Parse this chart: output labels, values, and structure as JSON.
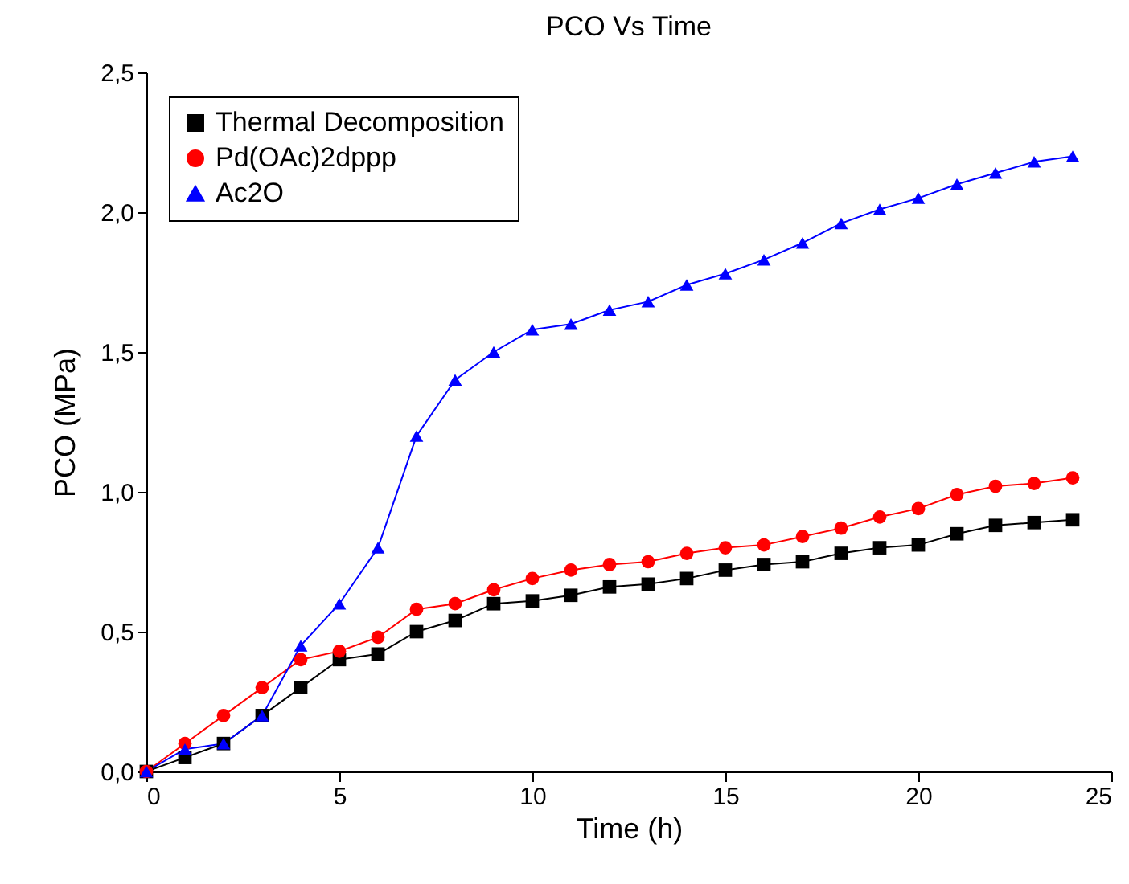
{
  "chart_data": {
    "type": "line",
    "title": "PCO Vs Time",
    "xlabel": "Time (h)",
    "ylabel": "PCO (MPa)",
    "x": [
      0,
      1,
      2,
      3,
      4,
      5,
      6,
      7,
      8,
      9,
      10,
      11,
      12,
      13,
      14,
      15,
      16,
      17,
      18,
      19,
      20,
      21,
      22,
      23,
      24
    ],
    "series": [
      {
        "name": "Thermal Decomposition",
        "color": "#000000",
        "marker": "square",
        "values": [
          0,
          0.05,
          0.1,
          0.2,
          0.3,
          0.4,
          0.42,
          0.5,
          0.54,
          0.6,
          0.61,
          0.63,
          0.66,
          0.67,
          0.69,
          0.72,
          0.74,
          0.75,
          0.78,
          0.8,
          0.81,
          0.85,
          0.88,
          0.89,
          0.9
        ]
      },
      {
        "name": "Pd(OAc)2dppp",
        "color": "#ff0000",
        "marker": "circle",
        "values": [
          0,
          0.1,
          0.2,
          0.3,
          0.4,
          0.43,
          0.48,
          0.58,
          0.6,
          0.65,
          0.69,
          0.72,
          0.74,
          0.75,
          0.78,
          0.8,
          0.81,
          0.84,
          0.87,
          0.91,
          0.94,
          0.99,
          1.02,
          1.03,
          1.05
        ]
      },
      {
        "name": "Ac2O",
        "color": "#0000ff",
        "marker": "triangle",
        "values": [
          0,
          0.08,
          0.1,
          0.2,
          0.45,
          0.6,
          0.8,
          1.2,
          1.4,
          1.5,
          1.58,
          1.6,
          1.65,
          1.68,
          1.74,
          1.78,
          1.83,
          1.89,
          1.96,
          2.01,
          2.05,
          2.1,
          2.14,
          2.18,
          2.2
        ]
      }
    ],
    "xlim": [
      0,
      25
    ],
    "xticks": [
      0,
      5,
      10,
      15,
      20,
      25
    ],
    "ylim": [
      0,
      2.5
    ],
    "yticks": [
      {
        "value": 0,
        "label": "0,0"
      },
      {
        "value": 0.5,
        "label": "0,5"
      },
      {
        "value": 1,
        "label": "1,0"
      },
      {
        "value": 1.5,
        "label": "1,5"
      },
      {
        "value": 2,
        "label": "2,0"
      },
      {
        "value": 2.5,
        "label": "2,5"
      }
    ],
    "grid": false,
    "legend": "top left",
    "line_style": "solid"
  }
}
